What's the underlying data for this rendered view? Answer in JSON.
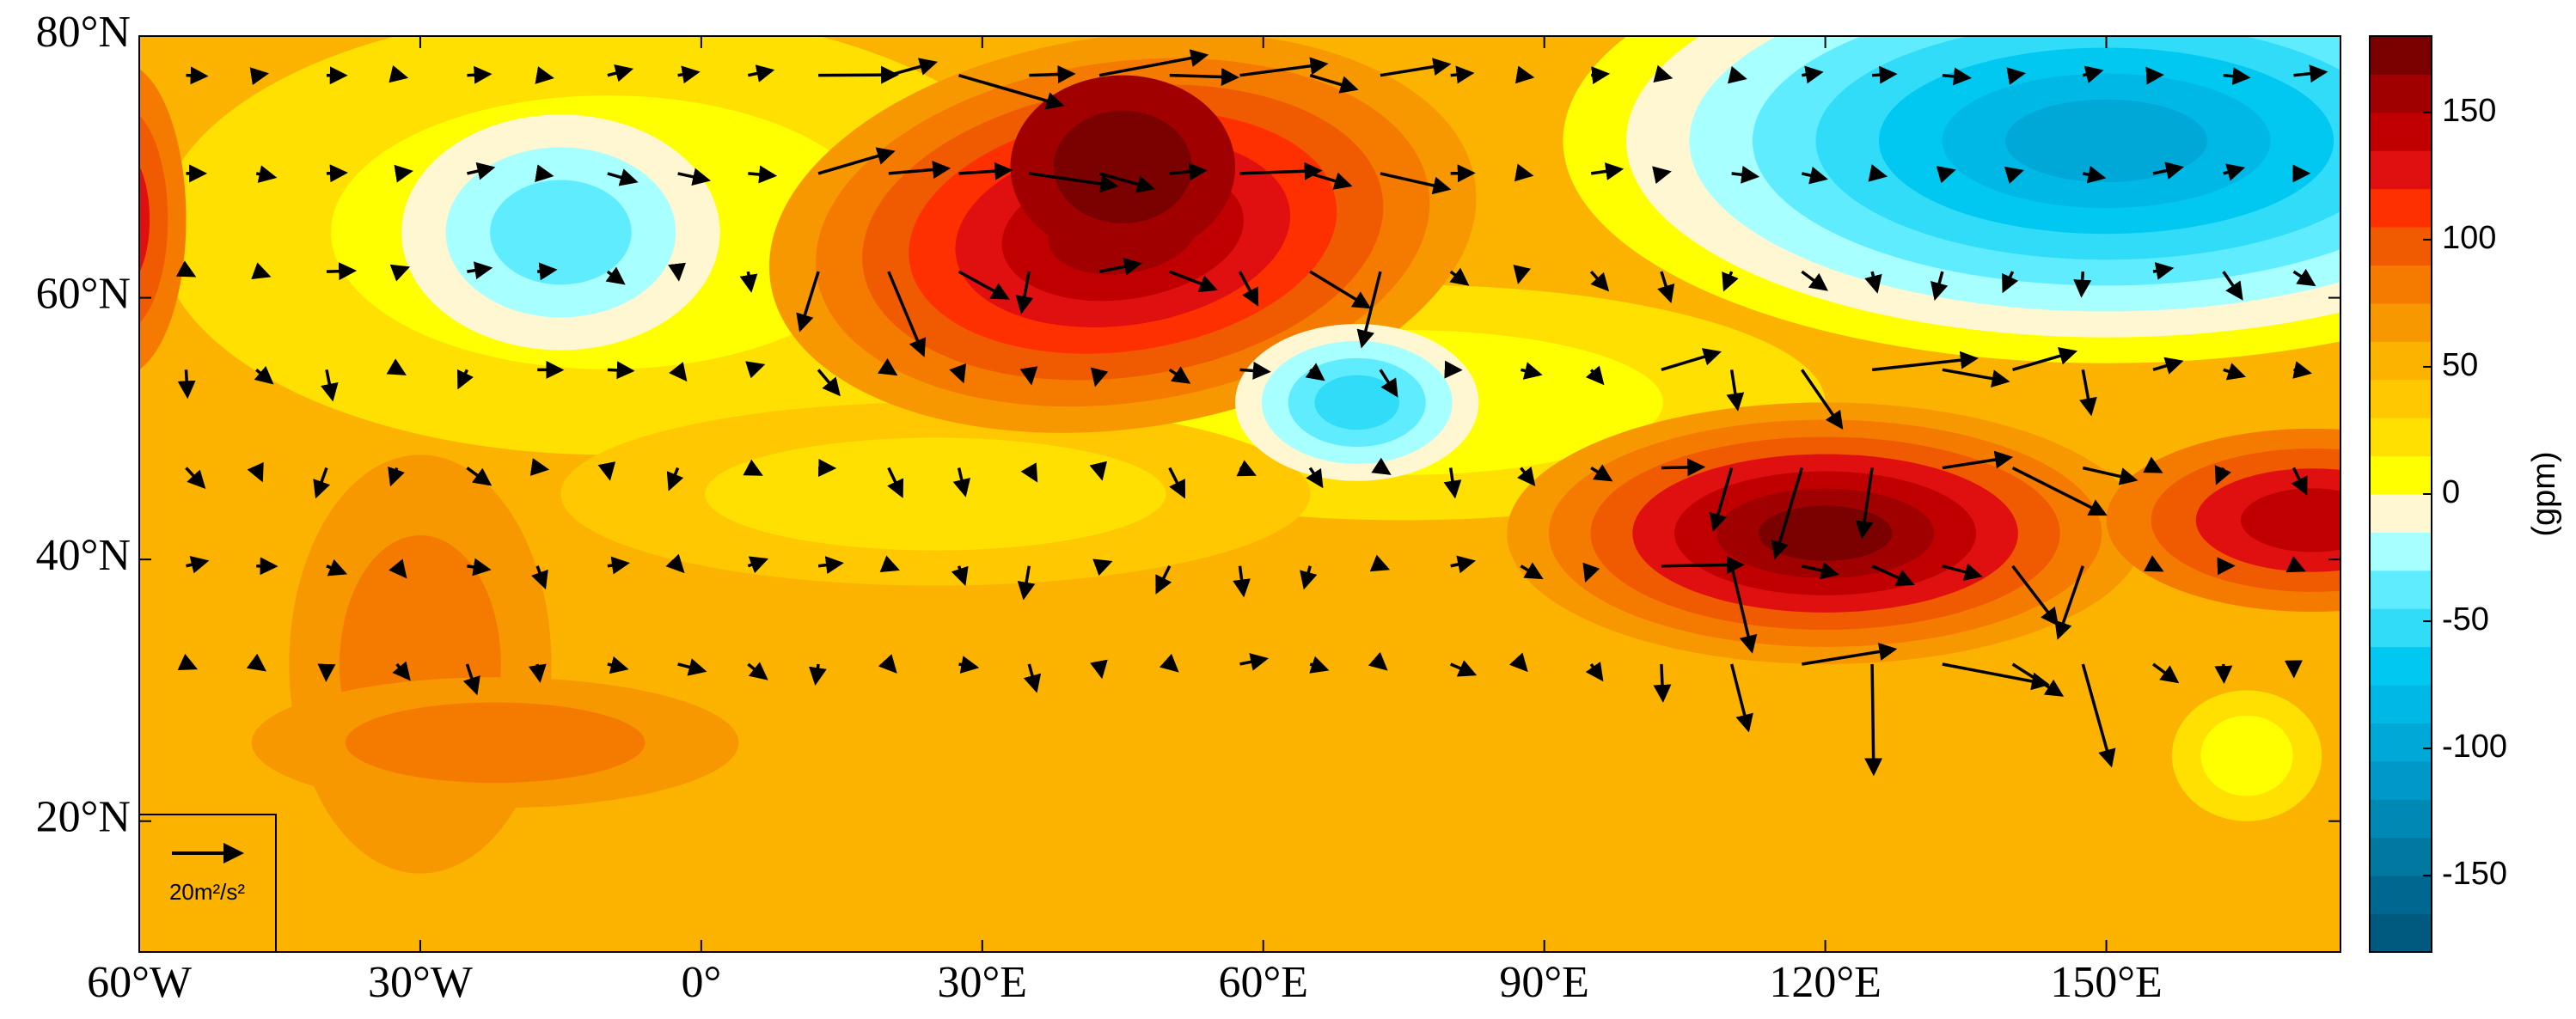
{
  "map": {
    "x_axis": {
      "lim": [
        -60,
        175
      ],
      "ticks": [
        {
          "value": -60,
          "label": "60°W"
        },
        {
          "value": -30,
          "label": "30°W"
        },
        {
          "value": 0,
          "label": "0°"
        },
        {
          "value": 30,
          "label": "30°E"
        },
        {
          "value": 60,
          "label": "60°E"
        },
        {
          "value": 90,
          "label": "90°E"
        },
        {
          "value": 120,
          "label": "120°E"
        },
        {
          "value": 150,
          "label": "150°E"
        }
      ]
    },
    "y_axis": {
      "lim": [
        10,
        80
      ],
      "ticks": [
        {
          "value": 20,
          "label": "20°N"
        },
        {
          "value": 40,
          "label": "40°N"
        },
        {
          "value": 60,
          "label": "60°N"
        },
        {
          "value": 80,
          "label": "80°N"
        }
      ]
    },
    "reference_vector": {
      "label": "20m²/s²"
    },
    "colorbar": {
      "lim": [
        -180,
        180
      ],
      "ticks": [
        -150,
        -100,
        -50,
        0,
        50,
        100,
        150
      ],
      "label": "(gpm)",
      "colors": [
        "#005a80",
        "#006890",
        "#0078a0",
        "#0088b4",
        "#0098c8",
        "#00a8d8",
        "#00b8e6",
        "#00c8f0",
        "#30dcf8",
        "#60ecff",
        "#a8ffff",
        "#fff6d2",
        "#ffff00",
        "#ffe000",
        "#ffc800",
        "#fbb300",
        "#f89800",
        "#f57a00",
        "#f05a00",
        "#ff3000",
        "#e01010",
        "#c00000",
        "#a00000",
        "#7b0000"
      ]
    }
  }
}
